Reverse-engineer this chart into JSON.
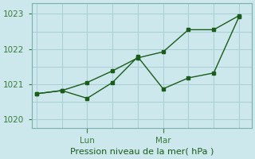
{
  "xlabel": "Pression niveau de la mer( hPa )",
  "bg_color": "#cce8ec",
  "grid_color": "#aacdd4",
  "line_color": "#1a5c1a",
  "ylim": [
    1019.75,
    1023.3
  ],
  "yticks": [
    1020,
    1021,
    1022,
    1023
  ],
  "x_lun": 2.0,
  "x_mar": 5.0,
  "series1_x": [
    0.0,
    1.0,
    2.0,
    3.0,
    4.0,
    5.0,
    6.0,
    7.0,
    8.0
  ],
  "series1_y": [
    1020.73,
    1020.82,
    1020.6,
    1021.05,
    1021.78,
    1020.87,
    1021.18,
    1021.32,
    1022.92
  ],
  "series2_x": [
    0.0,
    1.0,
    2.0,
    3.0,
    4.0,
    5.0,
    6.0,
    7.0,
    8.0
  ],
  "series2_y": [
    1020.73,
    1020.82,
    1021.05,
    1021.38,
    1021.75,
    1021.92,
    1022.55,
    1022.55,
    1022.95
  ],
  "xlim": [
    -0.2,
    8.5
  ],
  "xtick_positions": [
    2.0,
    5.0
  ],
  "xtick_labels": [
    "Lun",
    "Mar"
  ]
}
